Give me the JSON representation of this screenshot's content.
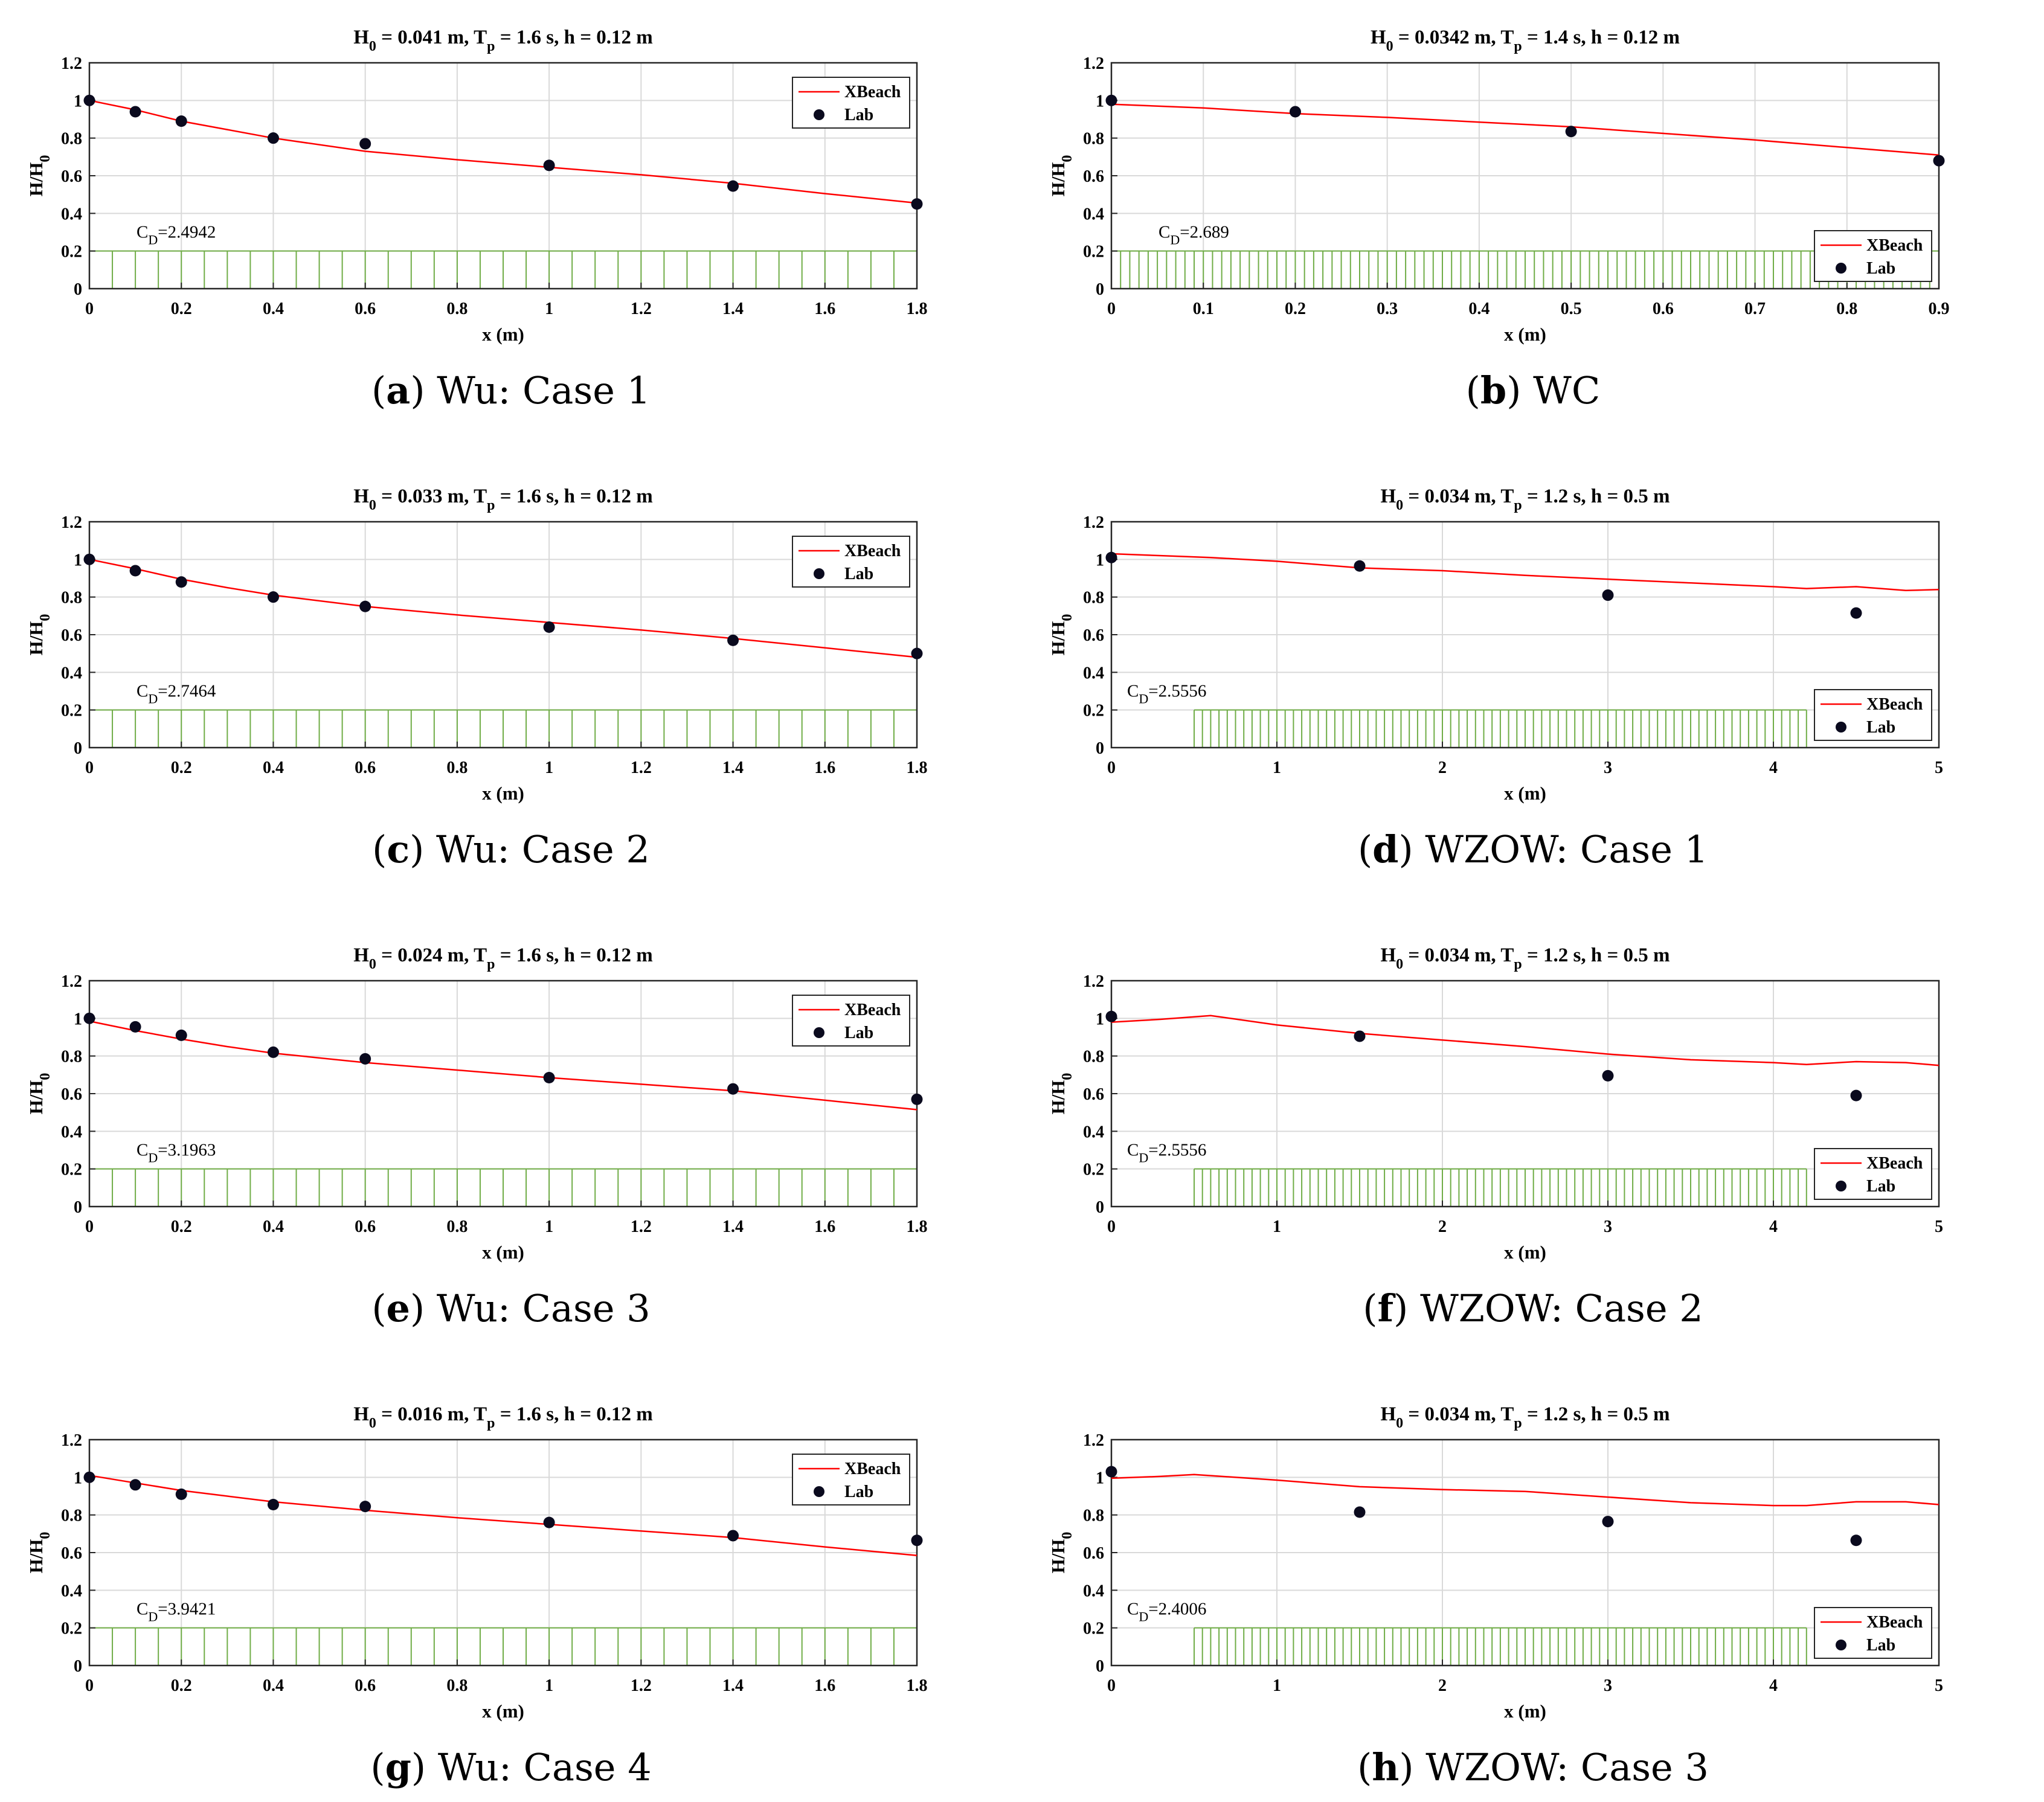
{
  "chart_data": [
    {
      "type": "line",
      "letter": "a",
      "caption": "Wu: Case 1",
      "title": {
        "H": "H",
        "Hsub": "0",
        "Hval": " = 0.041 m, T",
        "Tsub": "p",
        "rest": " = 1.6 s, h = 0.12 m"
      },
      "xlabel": "x (m)",
      "ylabel": {
        "main": "H/H",
        "sub": "0"
      },
      "xlim": [
        0,
        1.8
      ],
      "ylim": [
        0,
        1.2
      ],
      "xticks": [
        0,
        0.2,
        0.4,
        0.6,
        0.8,
        1,
        1.2,
        1.4,
        1.6,
        1.8
      ],
      "yticks": [
        0,
        0.2,
        0.4,
        0.6,
        0.8,
        1,
        1.2
      ],
      "cd": {
        "main": "C",
        "sub": "D",
        "value": "=2.4942"
      },
      "legend_position": "top-right",
      "vegetation": {
        "x_start": 0,
        "x_end": 1.8,
        "height": 0.2,
        "spacing": 0.05
      },
      "series": [
        {
          "name": "XBeach",
          "kind": "line",
          "color": "#ff0000",
          "x": [
            0,
            0.1,
            0.2,
            0.3,
            0.4,
            0.6,
            0.8,
            1.0,
            1.2,
            1.4,
            1.6,
            1.8
          ],
          "y": [
            1.0,
            0.95,
            0.89,
            0.845,
            0.8,
            0.73,
            0.685,
            0.645,
            0.605,
            0.56,
            0.505,
            0.455
          ]
        },
        {
          "name": "Lab",
          "kind": "scatter",
          "color": "#0a0a1e",
          "x": [
            0,
            0.1,
            0.2,
            0.4,
            0.6,
            1.0,
            1.4,
            1.8
          ],
          "y": [
            1.0,
            0.94,
            0.89,
            0.8,
            0.77,
            0.655,
            0.545,
            0.45
          ]
        }
      ]
    },
    {
      "type": "line",
      "letter": "b",
      "caption": "WC",
      "title": {
        "H": "H",
        "Hsub": "0",
        "Hval": " = 0.0342 m, T",
        "Tsub": "p",
        "rest": " = 1.4 s, h = 0.12 m"
      },
      "xlabel": "x (m)",
      "ylabel": {
        "main": "H/H",
        "sub": "0"
      },
      "xlim": [
        0,
        0.9
      ],
      "ylim": [
        0,
        1.2
      ],
      "xticks": [
        0,
        0.1,
        0.2,
        0.3,
        0.4,
        0.5,
        0.6,
        0.7,
        0.8,
        0.9
      ],
      "yticks": [
        0,
        0.2,
        0.4,
        0.6,
        0.8,
        1,
        1.2
      ],
      "cd": {
        "main": "C",
        "sub": "D",
        "value": "=2.689"
      },
      "legend_position": "bottom-right",
      "vegetation": {
        "x_start": 0,
        "x_end": 0.9,
        "height": 0.2,
        "spacing": 0.01
      },
      "series": [
        {
          "name": "XBeach",
          "kind": "line",
          "color": "#ff0000",
          "x": [
            0,
            0.1,
            0.2,
            0.3,
            0.4,
            0.5,
            0.6,
            0.7,
            0.8,
            0.9
          ],
          "y": [
            0.98,
            0.96,
            0.93,
            0.91,
            0.885,
            0.86,
            0.825,
            0.79,
            0.75,
            0.71
          ]
        },
        {
          "name": "Lab",
          "kind": "scatter",
          "color": "#0a0a1e",
          "x": [
            0,
            0.2,
            0.5,
            0.9
          ],
          "y": [
            1.0,
            0.94,
            0.835,
            0.68
          ]
        }
      ]
    },
    {
      "type": "line",
      "letter": "c",
      "caption": "Wu: Case 2",
      "title": {
        "H": "H",
        "Hsub": "0",
        "Hval": " = 0.033 m, T",
        "Tsub": "p",
        "rest": " = 1.6 s, h = 0.12 m"
      },
      "xlabel": "x (m)",
      "ylabel": {
        "main": "H/H",
        "sub": "0"
      },
      "xlim": [
        0,
        1.8
      ],
      "ylim": [
        0,
        1.2
      ],
      "xticks": [
        0,
        0.2,
        0.4,
        0.6,
        0.8,
        1,
        1.2,
        1.4,
        1.6,
        1.8
      ],
      "yticks": [
        0,
        0.2,
        0.4,
        0.6,
        0.8,
        1,
        1.2
      ],
      "cd": {
        "main": "C",
        "sub": "D",
        "value": "=2.7464"
      },
      "legend_position": "top-right",
      "vegetation": {
        "x_start": 0,
        "x_end": 1.8,
        "height": 0.2,
        "spacing": 0.05
      },
      "series": [
        {
          "name": "XBeach",
          "kind": "line",
          "color": "#ff0000",
          "x": [
            0,
            0.1,
            0.2,
            0.3,
            0.4,
            0.6,
            0.8,
            1.0,
            1.2,
            1.4,
            1.6,
            1.8
          ],
          "y": [
            1.0,
            0.95,
            0.895,
            0.85,
            0.81,
            0.75,
            0.705,
            0.665,
            0.625,
            0.58,
            0.53,
            0.48
          ]
        },
        {
          "name": "Lab",
          "kind": "scatter",
          "color": "#0a0a1e",
          "x": [
            0,
            0.1,
            0.2,
            0.4,
            0.6,
            1.0,
            1.4,
            1.8
          ],
          "y": [
            1.0,
            0.94,
            0.88,
            0.8,
            0.75,
            0.64,
            0.57,
            0.5
          ]
        }
      ]
    },
    {
      "type": "line",
      "letter": "d",
      "caption": "WZOW: Case 1",
      "title": {
        "H": "H",
        "Hsub": "0",
        "Hval": " = 0.034 m, T",
        "Tsub": "p",
        "rest": " = 1.2 s, h = 0.5 m"
      },
      "xlabel": "x (m)",
      "ylabel": {
        "main": "H/H",
        "sub": "0"
      },
      "xlim": [
        0,
        5
      ],
      "ylim": [
        0,
        1.2
      ],
      "xticks": [
        0,
        1,
        2,
        3,
        4,
        5
      ],
      "yticks": [
        0,
        0.2,
        0.4,
        0.6,
        0.8,
        1,
        1.2
      ],
      "cd": {
        "main": "C",
        "sub": "D",
        "value": "=2.5556"
      },
      "legend_position": "bottom-right",
      "vegetation": {
        "x_start": 0.5,
        "x_end": 4.2,
        "height": 0.2,
        "spacing": 0.05
      },
      "series": [
        {
          "name": "XBeach",
          "kind": "line",
          "color": "#ff0000",
          "x": [
            0,
            0.3,
            0.6,
            1.0,
            1.5,
            2.0,
            2.5,
            3.0,
            3.5,
            4.0,
            4.2,
            4.5,
            4.8,
            5.0
          ],
          "y": [
            1.03,
            1.02,
            1.01,
            0.99,
            0.955,
            0.94,
            0.915,
            0.895,
            0.875,
            0.855,
            0.845,
            0.855,
            0.835,
            0.84
          ]
        },
        {
          "name": "Lab",
          "kind": "scatter",
          "color": "#0a0a1e",
          "x": [
            0,
            1.5,
            3.0,
            4.5
          ],
          "y": [
            1.01,
            0.965,
            0.81,
            0.715
          ]
        }
      ]
    },
    {
      "type": "line",
      "letter": "e",
      "caption": "Wu: Case 3",
      "title": {
        "H": "H",
        "Hsub": "0",
        "Hval": " = 0.024 m, T",
        "Tsub": "p",
        "rest": " = 1.6 s, h = 0.12 m"
      },
      "xlabel": "x (m)",
      "ylabel": {
        "main": "H/H",
        "sub": "0"
      },
      "xlim": [
        0,
        1.8
      ],
      "ylim": [
        0,
        1.2
      ],
      "xticks": [
        0,
        0.2,
        0.4,
        0.6,
        0.8,
        1,
        1.2,
        1.4,
        1.6,
        1.8
      ],
      "yticks": [
        0,
        0.2,
        0.4,
        0.6,
        0.8,
        1,
        1.2
      ],
      "cd": {
        "main": "C",
        "sub": "D",
        "value": "=3.1963"
      },
      "legend_position": "top-right",
      "vegetation": {
        "x_start": 0,
        "x_end": 1.8,
        "height": 0.2,
        "spacing": 0.05
      },
      "series": [
        {
          "name": "XBeach",
          "kind": "line",
          "color": "#ff0000",
          "x": [
            0,
            0.1,
            0.2,
            0.3,
            0.4,
            0.6,
            0.8,
            1.0,
            1.2,
            1.4,
            1.6,
            1.8
          ],
          "y": [
            0.985,
            0.935,
            0.89,
            0.85,
            0.815,
            0.765,
            0.725,
            0.685,
            0.65,
            0.615,
            0.565,
            0.515
          ]
        },
        {
          "name": "Lab",
          "kind": "scatter",
          "color": "#0a0a1e",
          "x": [
            0,
            0.1,
            0.2,
            0.4,
            0.6,
            1.0,
            1.4,
            1.8
          ],
          "y": [
            1.0,
            0.955,
            0.91,
            0.82,
            0.785,
            0.685,
            0.625,
            0.57
          ]
        }
      ]
    },
    {
      "type": "line",
      "letter": "f",
      "caption": "WZOW: Case 2",
      "title": {
        "H": "H",
        "Hsub": "0",
        "Hval": " = 0.034 m, T",
        "Tsub": "p",
        "rest": " = 1.2 s, h = 0.5 m"
      },
      "xlabel": "x (m)",
      "ylabel": {
        "main": "H/H",
        "sub": "0"
      },
      "xlim": [
        0,
        5
      ],
      "ylim": [
        0,
        1.2
      ],
      "xticks": [
        0,
        1,
        2,
        3,
        4,
        5
      ],
      "yticks": [
        0,
        0.2,
        0.4,
        0.6,
        0.8,
        1,
        1.2
      ],
      "cd": {
        "main": "C",
        "sub": "D",
        "value": "=2.5556"
      },
      "legend_position": "bottom-right",
      "vegetation": {
        "x_start": 0.5,
        "x_end": 4.2,
        "height": 0.2,
        "spacing": 0.05
      },
      "series": [
        {
          "name": "XBeach",
          "kind": "line",
          "color": "#ff0000",
          "x": [
            0,
            0.3,
            0.6,
            1.0,
            1.5,
            2.0,
            2.5,
            3.0,
            3.5,
            4.0,
            4.2,
            4.5,
            4.8,
            5.0
          ],
          "y": [
            0.98,
            0.995,
            1.015,
            0.965,
            0.92,
            0.885,
            0.85,
            0.81,
            0.78,
            0.765,
            0.755,
            0.77,
            0.765,
            0.75
          ]
        },
        {
          "name": "Lab",
          "kind": "scatter",
          "color": "#0a0a1e",
          "x": [
            0,
            1.5,
            3.0,
            4.5
          ],
          "y": [
            1.01,
            0.905,
            0.695,
            0.59
          ]
        }
      ]
    },
    {
      "type": "line",
      "letter": "g",
      "caption": "Wu: Case 4",
      "title": {
        "H": "H",
        "Hsub": "0",
        "Hval": " = 0.016 m, T",
        "Tsub": "p",
        "rest": " = 1.6 s, h = 0.12 m"
      },
      "xlabel": "x (m)",
      "ylabel": {
        "main": "H/H",
        "sub": "0"
      },
      "xlim": [
        0,
        1.8
      ],
      "ylim": [
        0,
        1.2
      ],
      "xticks": [
        0,
        0.2,
        0.4,
        0.6,
        0.8,
        1,
        1.2,
        1.4,
        1.6,
        1.8
      ],
      "yticks": [
        0,
        0.2,
        0.4,
        0.6,
        0.8,
        1,
        1.2
      ],
      "cd": {
        "main": "C",
        "sub": "D",
        "value": "=3.9421"
      },
      "legend_position": "top-right",
      "vegetation": {
        "x_start": 0,
        "x_end": 1.8,
        "height": 0.2,
        "spacing": 0.05
      },
      "series": [
        {
          "name": "XBeach",
          "kind": "line",
          "color": "#ff0000",
          "x": [
            0,
            0.1,
            0.2,
            0.3,
            0.4,
            0.6,
            0.8,
            1.0,
            1.2,
            1.4,
            1.6,
            1.8
          ],
          "y": [
            1.01,
            0.97,
            0.93,
            0.9,
            0.87,
            0.825,
            0.785,
            0.75,
            0.715,
            0.68,
            0.63,
            0.585
          ]
        },
        {
          "name": "Lab",
          "kind": "scatter",
          "color": "#0a0a1e",
          "x": [
            0,
            0.1,
            0.2,
            0.4,
            0.6,
            1.0,
            1.4,
            1.8
          ],
          "y": [
            1.0,
            0.96,
            0.91,
            0.855,
            0.845,
            0.76,
            0.69,
            0.665
          ]
        }
      ]
    },
    {
      "type": "line",
      "letter": "h",
      "caption": "WZOW: Case 3",
      "title": {
        "H": "H",
        "Hsub": "0",
        "Hval": " = 0.034 m, T",
        "Tsub": "p",
        "rest": " = 1.2 s, h = 0.5 m"
      },
      "xlabel": "x (m)",
      "ylabel": {
        "main": "H/H",
        "sub": "0"
      },
      "xlim": [
        0,
        5
      ],
      "ylim": [
        0,
        1.2
      ],
      "xticks": [
        0,
        1,
        2,
        3,
        4,
        5
      ],
      "yticks": [
        0,
        0.2,
        0.4,
        0.6,
        0.8,
        1,
        1.2
      ],
      "cd": {
        "main": "C",
        "sub": "D",
        "value": "=2.4006"
      },
      "legend_position": "bottom-right",
      "vegetation": {
        "x_start": 0.5,
        "x_end": 4.2,
        "height": 0.2,
        "spacing": 0.05
      },
      "series": [
        {
          "name": "XBeach",
          "kind": "line",
          "color": "#ff0000",
          "x": [
            0,
            0.3,
            0.5,
            1.0,
            1.5,
            2.0,
            2.5,
            3.0,
            3.5,
            4.0,
            4.2,
            4.5,
            4.8,
            5.0
          ],
          "y": [
            0.995,
            1.005,
            1.015,
            0.985,
            0.95,
            0.935,
            0.925,
            0.895,
            0.865,
            0.85,
            0.85,
            0.87,
            0.87,
            0.855
          ]
        },
        {
          "name": "Lab",
          "kind": "scatter",
          "color": "#0a0a1e",
          "x": [
            0,
            1.5,
            3.0,
            4.5
          ],
          "y": [
            1.03,
            0.815,
            0.765,
            0.665
          ]
        }
      ]
    }
  ],
  "colors": {
    "xbeach": "#ff0000",
    "lab": "#0a0a1e",
    "vegetation": "#70ad47",
    "grid": "#d9d9d9"
  }
}
